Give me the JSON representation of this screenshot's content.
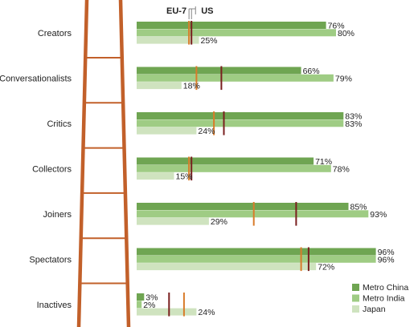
{
  "chart_data": {
    "type": "bar",
    "orientation": "horizontal",
    "categories": [
      "Creators",
      "Conversationalists",
      "Critics",
      "Collectors",
      "Joiners",
      "Spectators",
      "Inactives"
    ],
    "series": [
      {
        "name": "Metro China",
        "color": "#6fa552",
        "values": [
          76,
          66,
          83,
          71,
          85,
          96,
          3
        ]
      },
      {
        "name": "Metro India",
        "color": "#9fcc84",
        "values": [
          80,
          79,
          83,
          78,
          93,
          96,
          2
        ]
      },
      {
        "name": "Japan",
        "color": "#cfe3bf",
        "values": [
          25,
          18,
          24,
          15,
          29,
          72,
          24
        ]
      }
    ],
    "value_labels": {
      "Metro China": [
        "76%",
        "66%",
        "83%",
        "71%",
        "85%",
        "96%",
        "3%"
      ],
      "Metro India": [
        "80%",
        "79%",
        "83%",
        "78%",
        "93%",
        "96%",
        "2%"
      ],
      "Japan": [
        "25%",
        "18%",
        "24%",
        "15%",
        "29%",
        "72%",
        "24%"
      ]
    },
    "reference_markers": [
      {
        "name": "EU-7",
        "color": "#d97b2a",
        "values": [
          21,
          24,
          31,
          21,
          47,
          66,
          19
        ]
      },
      {
        "name": "US",
        "color": "#7a1f1f",
        "values": [
          22,
          34,
          35,
          22,
          64,
          69,
          13
        ]
      }
    ],
    "xlim": [
      0,
      100
    ],
    "legend_position": "bottom-right"
  }
}
